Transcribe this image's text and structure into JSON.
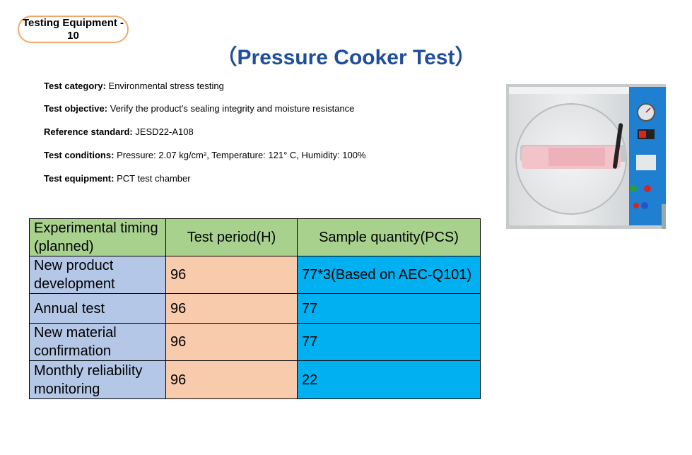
{
  "badge": "Testing Equipment - 10",
  "title": "（Pressure Cooker Test）",
  "info": [
    {
      "label": "Test category:",
      "value": "Environmental stress testing"
    },
    {
      "label": "Test objective:",
      "value": "Verify the product's sealing integrity and moisture resistance"
    },
    {
      "label": "Reference standard:",
      "value": "JESD22-A108"
    },
    {
      "label": "Test conditions:",
      "value": "Pressure: 2.07 kg/cm², Temperature: 121° C, Humidity: 100%"
    },
    {
      "label": "Test equipment:",
      "value": "PCT test chamber"
    }
  ],
  "table": {
    "headers": [
      "Experimental timing (planned)",
      "Test period(H)",
      "Sample quantity(PCS)"
    ],
    "rows": [
      [
        "New product development",
        "96",
        "77*3(Based on AEC-Q101)"
      ],
      [
        "Annual test",
        "96",
        "77"
      ],
      [
        "New material confirmation",
        "96",
        "77"
      ],
      [
        "Monthly reliability monitoring",
        "96",
        "22"
      ]
    ]
  },
  "colors": {
    "badge_border": "#f4a66a",
    "title": "#1f4e9d",
    "header_bg": "#a9d18e",
    "col1_bg": "#b4c7e7",
    "col2_bg": "#f8cbad",
    "col3_bg": "#00b0f0",
    "machine_panel": "#1f7fd1"
  }
}
